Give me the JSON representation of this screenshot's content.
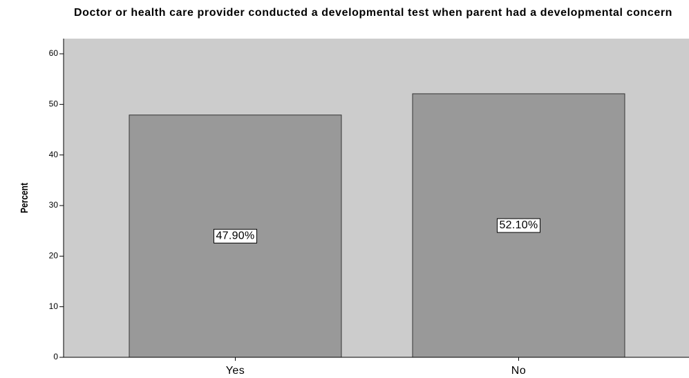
{
  "chart_data": {
    "type": "bar",
    "title": "Doctor or health care provider conducted a developmental test when parent had a developmental concern",
    "y_label": "Percent",
    "categories": [
      "Yes",
      "No"
    ],
    "values": [
      47.9,
      52.1
    ],
    "value_labels": [
      "47.90%",
      "52.10%"
    ],
    "color": "#999999",
    "background": "#cccccc",
    "ylim": [
      0,
      63
    ],
    "yticks": [
      0,
      10,
      20,
      30,
      40,
      50,
      60
    ]
  }
}
